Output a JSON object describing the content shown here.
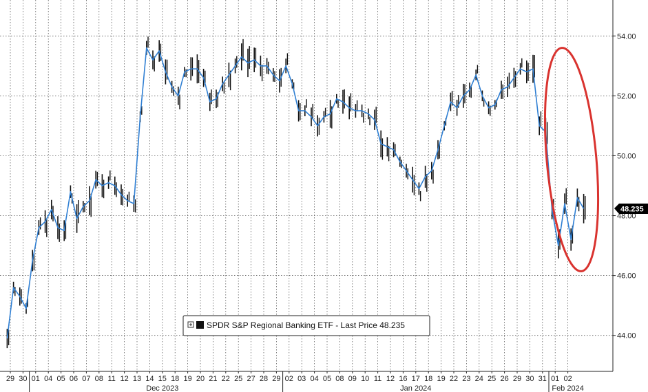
{
  "chart_data": {
    "type": "line",
    "title": "",
    "xlabel": "",
    "ylabel": "",
    "ylim": [
      42.8,
      55.2
    ],
    "y_ticks": [
      "44.00",
      "46.00",
      "48.00",
      "50.00",
      "52.00",
      "54.00"
    ],
    "x_ticks": [
      "29",
      "30",
      "01",
      "04",
      "05",
      "06",
      "07",
      "08",
      "11",
      "12",
      "13",
      "14",
      "15",
      "18",
      "19",
      "20",
      "21",
      "22",
      "25",
      "27",
      "28",
      "29",
      "02",
      "03",
      "04",
      "05",
      "08",
      "09",
      "10",
      "11",
      "12",
      "16",
      "17",
      "18",
      "19",
      "22",
      "23",
      "24",
      "25",
      "26",
      "29",
      "30",
      "31",
      "01",
      "02"
    ],
    "month_labels": [
      "Dec 2023",
      "Jan 2024",
      "Feb 2024"
    ],
    "grid": true,
    "legend_position": "bottom-center",
    "annotation": "red ellipse highlighting the late-January drop",
    "line_color": "#2f7fd3",
    "bar_color": "#111111",
    "highlight_color": "#d9332f",
    "series": [
      {
        "name": "SPDR S&P Regional Banking ETF - Last Price 48.235",
        "last_price": "48.235",
        "points": [
          [
            "29",
            43.9
          ],
          [
            "29",
            45.6
          ],
          [
            "30",
            45.3
          ],
          [
            "30",
            44.9
          ],
          [
            "01",
            46.5
          ],
          [
            "01",
            47.6
          ],
          [
            "04",
            47.8
          ],
          [
            "04",
            48.2
          ],
          [
            "05",
            47.6
          ],
          [
            "05",
            47.5
          ],
          [
            "06",
            48.8
          ],
          [
            "06",
            47.9
          ],
          [
            "07",
            48.3
          ],
          [
            "07",
            48.5
          ],
          [
            "08",
            49.2
          ],
          [
            "08",
            49.0
          ],
          [
            "11",
            49.1
          ],
          [
            "11",
            49.0
          ],
          [
            "12",
            48.7
          ],
          [
            "12",
            48.5
          ],
          [
            "13",
            48.4
          ],
          [
            "13",
            51.3
          ],
          [
            "14",
            53.6
          ],
          [
            "14",
            53.2
          ],
          [
            "15",
            53.5
          ],
          [
            "15",
            52.8
          ],
          [
            "18",
            52.3
          ],
          [
            "18",
            52.0
          ],
          [
            "19",
            52.8
          ],
          [
            "19",
            52.9
          ],
          [
            "20",
            52.9
          ],
          [
            "20",
            52.6
          ],
          [
            "21",
            51.8
          ],
          [
            "21",
            51.9
          ],
          [
            "22",
            52.4
          ],
          [
            "22",
            52.7
          ],
          [
            "25",
            53.0
          ],
          [
            "25",
            53.3
          ],
          [
            "27",
            53.1
          ],
          [
            "27",
            53.2
          ],
          [
            "28",
            53.0
          ],
          [
            "28",
            53.0
          ],
          [
            "29",
            52.7
          ],
          [
            "29",
            52.5
          ],
          [
            "02",
            53.0
          ],
          [
            "02",
            52.4
          ],
          [
            "03",
            51.5
          ],
          [
            "03",
            51.5
          ],
          [
            "04",
            51.3
          ],
          [
            "04",
            51.0
          ],
          [
            "05",
            51.3
          ],
          [
            "05",
            51.4
          ],
          [
            "08",
            51.9
          ],
          [
            "08",
            51.8
          ],
          [
            "09",
            51.6
          ],
          [
            "09",
            51.5
          ],
          [
            "10",
            51.5
          ],
          [
            "10",
            51.4
          ],
          [
            "11",
            51.2
          ],
          [
            "11",
            50.4
          ],
          [
            "12",
            50.3
          ],
          [
            "12",
            50.2
          ],
          [
            "16",
            49.8
          ],
          [
            "16",
            49.5
          ],
          [
            "17",
            49.2
          ],
          [
            "17",
            48.9
          ],
          [
            "18",
            49.3
          ],
          [
            "18",
            49.5
          ],
          [
            "19",
            50.2
          ],
          [
            "19",
            51.0
          ],
          [
            "22",
            51.8
          ],
          [
            "22",
            51.6
          ],
          [
            "23",
            52.0
          ],
          [
            "23",
            52.2
          ],
          [
            "24",
            52.7
          ],
          [
            "24",
            52.0
          ],
          [
            "25",
            51.6
          ],
          [
            "25",
            51.7
          ],
          [
            "26",
            52.2
          ],
          [
            "26",
            52.3
          ],
          [
            "29",
            52.6
          ],
          [
            "29",
            52.9
          ],
          [
            "30",
            52.8
          ],
          [
            "30",
            52.9
          ],
          [
            "31",
            51.0
          ],
          [
            "31",
            50.8
          ],
          [
            "31",
            48.2
          ],
          [
            "31",
            47.0
          ],
          [
            "01",
            48.4
          ],
          [
            "01",
            47.2
          ],
          [
            "02",
            48.6
          ],
          [
            "02",
            48.235
          ]
        ]
      }
    ]
  }
}
